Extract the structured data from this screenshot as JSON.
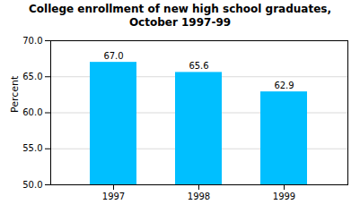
{
  "chart_data": {
    "type": "bar",
    "title": "College enrollment of new high school graduates,\nOctober 1997-99",
    "categories": [
      "1997",
      "1998",
      "1999"
    ],
    "values": [
      67.0,
      65.6,
      62.9
    ],
    "value_labels": [
      "67.0",
      "65.6",
      "62.9"
    ],
    "data_labels": true,
    "color": "#00BFFF",
    "ylabel": "Percent",
    "ylim": [
      50.0,
      70.0
    ],
    "yticks": [
      {
        "value": 50.0,
        "label": "50.0"
      },
      {
        "value": 55.0,
        "label": "55.0"
      },
      {
        "value": 60.0,
        "label": "60.0"
      },
      {
        "value": 65.0,
        "label": "65.0"
      },
      {
        "value": 70.0,
        "label": "70.0"
      }
    ],
    "grid": true
  }
}
